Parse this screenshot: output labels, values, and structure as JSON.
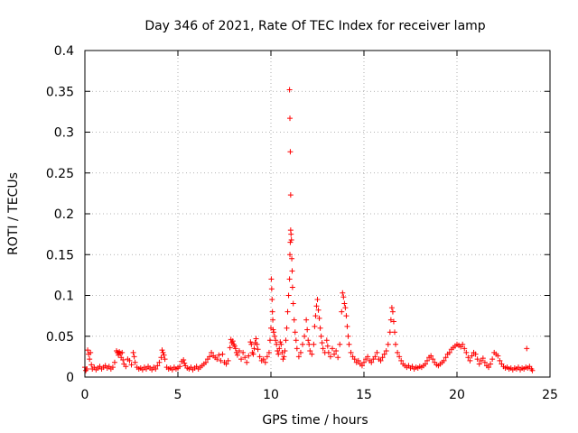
{
  "chart_data": {
    "type": "scatter",
    "title": "Day 346 of 2021, Rate Of TEC Index for receiver lamp",
    "xlabel": "GPS time / hours",
    "ylabel": "ROTI / TECUs",
    "xlim": [
      0,
      25
    ],
    "ylim": [
      0,
      0.4
    ],
    "xticks": [
      0,
      5,
      10,
      15,
      20,
      25
    ],
    "xtick_labels": [
      "0",
      "5",
      "10",
      "15",
      "20",
      "25"
    ],
    "yticks": [
      0,
      0.05,
      0.1,
      0.15,
      0.2,
      0.25,
      0.3,
      0.35,
      0.4
    ],
    "ytick_labels": [
      "0",
      "0.05",
      "0.1",
      "0.15",
      "0.2",
      "0.25",
      "0.3",
      "0.35",
      "0.4"
    ],
    "grid": true,
    "marker": "plus",
    "colors": {
      "series": "#ff0000",
      "grid": "#9a9a9a",
      "axis": "#000000"
    },
    "series": [
      {
        "color": "#ff0000",
        "points": [
          [
            0.0,
            0.012
          ],
          [
            0.05,
            0.008
          ],
          [
            0.1,
            0.01
          ],
          [
            0.15,
            0.033
          ],
          [
            0.2,
            0.028
          ],
          [
            0.25,
            0.022
          ],
          [
            0.3,
            0.03
          ],
          [
            0.35,
            0.015
          ],
          [
            0.4,
            0.01
          ],
          [
            0.5,
            0.012
          ],
          [
            0.6,
            0.009
          ],
          [
            0.7,
            0.011
          ],
          [
            0.8,
            0.013
          ],
          [
            0.9,
            0.01
          ],
          [
            1.0,
            0.012
          ],
          [
            1.1,
            0.014
          ],
          [
            1.2,
            0.011
          ],
          [
            1.3,
            0.013
          ],
          [
            1.4,
            0.01
          ],
          [
            1.5,
            0.012
          ],
          [
            1.6,
            0.018
          ],
          [
            1.7,
            0.032
          ],
          [
            1.75,
            0.03
          ],
          [
            1.8,
            0.027
          ],
          [
            1.85,
            0.031
          ],
          [
            1.9,
            0.029
          ],
          [
            1.95,
            0.024
          ],
          [
            2.0,
            0.03
          ],
          [
            2.05,
            0.021
          ],
          [
            2.1,
            0.016
          ],
          [
            2.2,
            0.013
          ],
          [
            2.3,
            0.022
          ],
          [
            2.4,
            0.02
          ],
          [
            2.5,
            0.015
          ],
          [
            2.6,
            0.03
          ],
          [
            2.65,
            0.025
          ],
          [
            2.7,
            0.018
          ],
          [
            2.8,
            0.012
          ],
          [
            2.9,
            0.01
          ],
          [
            3.0,
            0.011
          ],
          [
            3.1,
            0.009
          ],
          [
            3.2,
            0.012
          ],
          [
            3.3,
            0.01
          ],
          [
            3.4,
            0.013
          ],
          [
            3.5,
            0.011
          ],
          [
            3.6,
            0.009
          ],
          [
            3.7,
            0.012
          ],
          [
            3.8,
            0.01
          ],
          [
            3.9,
            0.014
          ],
          [
            4.0,
            0.018
          ],
          [
            4.1,
            0.024
          ],
          [
            4.15,
            0.033
          ],
          [
            4.2,
            0.03
          ],
          [
            4.25,
            0.027
          ],
          [
            4.3,
            0.022
          ],
          [
            4.4,
            0.012
          ],
          [
            4.5,
            0.01
          ],
          [
            4.6,
            0.011
          ],
          [
            4.7,
            0.009
          ],
          [
            4.8,
            0.012
          ],
          [
            4.9,
            0.01
          ],
          [
            5.0,
            0.011
          ],
          [
            5.1,
            0.013
          ],
          [
            5.2,
            0.019
          ],
          [
            5.3,
            0.021
          ],
          [
            5.35,
            0.017
          ],
          [
            5.4,
            0.014
          ],
          [
            5.5,
            0.011
          ],
          [
            5.6,
            0.01
          ],
          [
            5.7,
            0.012
          ],
          [
            5.8,
            0.009
          ],
          [
            5.9,
            0.011
          ],
          [
            6.0,
            0.013
          ],
          [
            6.1,
            0.01
          ],
          [
            6.2,
            0.012
          ],
          [
            6.3,
            0.014
          ],
          [
            6.4,
            0.016
          ],
          [
            6.5,
            0.018
          ],
          [
            6.6,
            0.022
          ],
          [
            6.7,
            0.025
          ],
          [
            6.8,
            0.03
          ],
          [
            6.9,
            0.026
          ],
          [
            7.0,
            0.024
          ],
          [
            7.1,
            0.022
          ],
          [
            7.2,
            0.027
          ],
          [
            7.3,
            0.02
          ],
          [
            7.4,
            0.028
          ],
          [
            7.5,
            0.018
          ],
          [
            7.6,
            0.016
          ],
          [
            7.7,
            0.02
          ],
          [
            7.8,
            0.036
          ],
          [
            7.85,
            0.046
          ],
          [
            7.9,
            0.042
          ],
          [
            7.95,
            0.044
          ],
          [
            8.0,
            0.04
          ],
          [
            8.05,
            0.038
          ],
          [
            8.1,
            0.035
          ],
          [
            8.15,
            0.03
          ],
          [
            8.2,
            0.027
          ],
          [
            8.3,
            0.032
          ],
          [
            8.4,
            0.022
          ],
          [
            8.5,
            0.03
          ],
          [
            8.6,
            0.024
          ],
          [
            8.7,
            0.018
          ],
          [
            8.8,
            0.026
          ],
          [
            8.9,
            0.043
          ],
          [
            8.95,
            0.04
          ],
          [
            9.0,
            0.03
          ],
          [
            9.05,
            0.028
          ],
          [
            9.1,
            0.035
          ],
          [
            9.15,
            0.042
          ],
          [
            9.2,
            0.047
          ],
          [
            9.25,
            0.04
          ],
          [
            9.3,
            0.034
          ],
          [
            9.4,
            0.025
          ],
          [
            9.5,
            0.02
          ],
          [
            9.6,
            0.022
          ],
          [
            9.7,
            0.018
          ],
          [
            9.8,
            0.025
          ],
          [
            9.9,
            0.03
          ],
          [
            9.95,
            0.045
          ],
          [
            10.0,
            0.06
          ],
          [
            10.02,
            0.12
          ],
          [
            10.04,
            0.108
          ],
          [
            10.06,
            0.095
          ],
          [
            10.08,
            0.08
          ],
          [
            10.1,
            0.07
          ],
          [
            10.12,
            0.058
          ],
          [
            10.15,
            0.055
          ],
          [
            10.2,
            0.05
          ],
          [
            10.25,
            0.045
          ],
          [
            10.3,
            0.04
          ],
          [
            10.35,
            0.032
          ],
          [
            10.4,
            0.028
          ],
          [
            10.45,
            0.035
          ],
          [
            10.5,
            0.043
          ],
          [
            10.55,
            0.04
          ],
          [
            10.6,
            0.03
          ],
          [
            10.65,
            0.022
          ],
          [
            10.7,
            0.025
          ],
          [
            10.75,
            0.032
          ],
          [
            10.8,
            0.045
          ],
          [
            10.85,
            0.06
          ],
          [
            10.9,
            0.08
          ],
          [
            10.95,
            0.1
          ],
          [
            11.0,
            0.12
          ],
          [
            11.02,
            0.15
          ],
          [
            11.04,
            0.165
          ],
          [
            11.06,
            0.18
          ],
          [
            11.08,
            0.175
          ],
          [
            11.1,
            0.168
          ],
          [
            11.12,
            0.145
          ],
          [
            11.14,
            0.13
          ],
          [
            11.16,
            0.11
          ],
          [
            11.0,
            0.352
          ],
          [
            11.02,
            0.317
          ],
          [
            11.04,
            0.276
          ],
          [
            11.06,
            0.223
          ],
          [
            11.2,
            0.09
          ],
          [
            11.25,
            0.07
          ],
          [
            11.3,
            0.055
          ],
          [
            11.35,
            0.045
          ],
          [
            11.4,
            0.035
          ],
          [
            11.5,
            0.025
          ],
          [
            11.6,
            0.03
          ],
          [
            11.7,
            0.04
          ],
          [
            11.8,
            0.05
          ],
          [
            11.9,
            0.07
          ],
          [
            11.95,
            0.058
          ],
          [
            12.0,
            0.045
          ],
          [
            12.05,
            0.04
          ],
          [
            12.1,
            0.032
          ],
          [
            12.2,
            0.028
          ],
          [
            12.3,
            0.04
          ],
          [
            12.35,
            0.062
          ],
          [
            12.4,
            0.075
          ],
          [
            12.45,
            0.087
          ],
          [
            12.5,
            0.095
          ],
          [
            12.55,
            0.082
          ],
          [
            12.6,
            0.072
          ],
          [
            12.65,
            0.06
          ],
          [
            12.7,
            0.05
          ],
          [
            12.75,
            0.042
          ],
          [
            12.8,
            0.035
          ],
          [
            12.9,
            0.03
          ],
          [
            13.0,
            0.045
          ],
          [
            13.05,
            0.038
          ],
          [
            13.1,
            0.03
          ],
          [
            13.2,
            0.025
          ],
          [
            13.3,
            0.035
          ],
          [
            13.4,
            0.028
          ],
          [
            13.5,
            0.032
          ],
          [
            13.6,
            0.024
          ],
          [
            13.7,
            0.04
          ],
          [
            13.8,
            0.08
          ],
          [
            13.85,
            0.103
          ],
          [
            13.9,
            0.098
          ],
          [
            13.95,
            0.09
          ],
          [
            14.0,
            0.085
          ],
          [
            14.05,
            0.075
          ],
          [
            14.1,
            0.062
          ],
          [
            14.15,
            0.05
          ],
          [
            14.2,
            0.04
          ],
          [
            14.3,
            0.03
          ],
          [
            14.4,
            0.025
          ],
          [
            14.5,
            0.022
          ],
          [
            14.6,
            0.018
          ],
          [
            14.7,
            0.02
          ],
          [
            14.8,
            0.016
          ],
          [
            14.9,
            0.014
          ],
          [
            15.0,
            0.018
          ],
          [
            15.1,
            0.022
          ],
          [
            15.2,
            0.025
          ],
          [
            15.3,
            0.02
          ],
          [
            15.4,
            0.018
          ],
          [
            15.5,
            0.022
          ],
          [
            15.6,
            0.025
          ],
          [
            15.7,
            0.03
          ],
          [
            15.8,
            0.022
          ],
          [
            15.9,
            0.02
          ],
          [
            16.0,
            0.024
          ],
          [
            16.1,
            0.028
          ],
          [
            16.2,
            0.032
          ],
          [
            16.3,
            0.04
          ],
          [
            16.4,
            0.055
          ],
          [
            16.45,
            0.07
          ],
          [
            16.5,
            0.085
          ],
          [
            16.55,
            0.08
          ],
          [
            16.6,
            0.068
          ],
          [
            16.65,
            0.055
          ],
          [
            16.7,
            0.04
          ],
          [
            16.8,
            0.03
          ],
          [
            16.9,
            0.025
          ],
          [
            17.0,
            0.02
          ],
          [
            17.1,
            0.016
          ],
          [
            17.2,
            0.014
          ],
          [
            17.3,
            0.012
          ],
          [
            17.4,
            0.014
          ],
          [
            17.5,
            0.011
          ],
          [
            17.6,
            0.013
          ],
          [
            17.7,
            0.01
          ],
          [
            17.8,
            0.012
          ],
          [
            17.9,
            0.011
          ],
          [
            18.0,
            0.013
          ],
          [
            18.1,
            0.012
          ],
          [
            18.2,
            0.014
          ],
          [
            18.3,
            0.016
          ],
          [
            18.4,
            0.02
          ],
          [
            18.5,
            0.024
          ],
          [
            18.6,
            0.026
          ],
          [
            18.7,
            0.022
          ],
          [
            18.8,
            0.018
          ],
          [
            18.9,
            0.015
          ],
          [
            19.0,
            0.014
          ],
          [
            19.1,
            0.016
          ],
          [
            19.2,
            0.018
          ],
          [
            19.3,
            0.02
          ],
          [
            19.4,
            0.024
          ],
          [
            19.5,
            0.028
          ],
          [
            19.6,
            0.03
          ],
          [
            19.7,
            0.034
          ],
          [
            19.8,
            0.036
          ],
          [
            19.9,
            0.038
          ],
          [
            20.0,
            0.04
          ],
          [
            20.1,
            0.039
          ],
          [
            20.2,
            0.037
          ],
          [
            20.3,
            0.04
          ],
          [
            20.4,
            0.035
          ],
          [
            20.5,
            0.03
          ],
          [
            20.6,
            0.024
          ],
          [
            20.7,
            0.02
          ],
          [
            20.8,
            0.026
          ],
          [
            20.9,
            0.03
          ],
          [
            21.0,
            0.028
          ],
          [
            21.1,
            0.022
          ],
          [
            21.2,
            0.016
          ],
          [
            21.3,
            0.02
          ],
          [
            21.4,
            0.023
          ],
          [
            21.5,
            0.018
          ],
          [
            21.6,
            0.014
          ],
          [
            21.7,
            0.012
          ],
          [
            21.8,
            0.016
          ],
          [
            21.9,
            0.022
          ],
          [
            22.0,
            0.03
          ],
          [
            22.1,
            0.028
          ],
          [
            22.2,
            0.026
          ],
          [
            22.3,
            0.02
          ],
          [
            22.4,
            0.016
          ],
          [
            22.5,
            0.013
          ],
          [
            22.6,
            0.011
          ],
          [
            22.7,
            0.012
          ],
          [
            22.8,
            0.01
          ],
          [
            22.9,
            0.011
          ],
          [
            23.0,
            0.009
          ],
          [
            23.1,
            0.011
          ],
          [
            23.2,
            0.01
          ],
          [
            23.3,
            0.012
          ],
          [
            23.4,
            0.009
          ],
          [
            23.5,
            0.011
          ],
          [
            23.6,
            0.01
          ],
          [
            23.7,
            0.012
          ],
          [
            23.75,
            0.035
          ],
          [
            23.8,
            0.011
          ],
          [
            23.9,
            0.013
          ],
          [
            24.0,
            0.01
          ],
          [
            24.05,
            0.008
          ]
        ]
      }
    ]
  }
}
